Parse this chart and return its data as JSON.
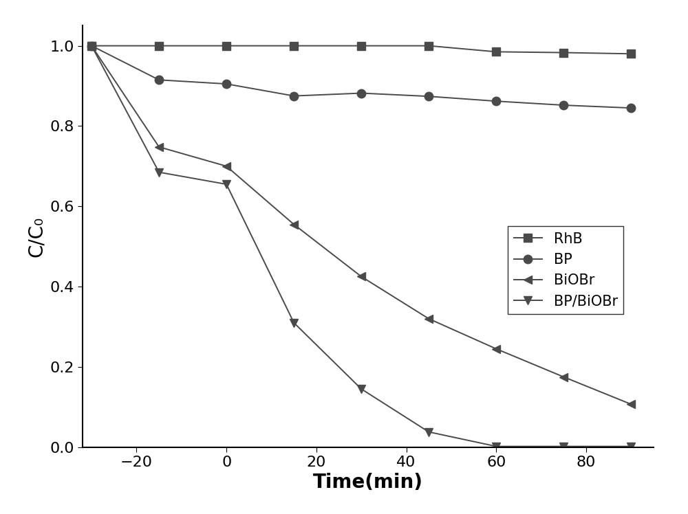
{
  "series": {
    "RhB": {
      "x": [
        -30,
        -15,
        0,
        15,
        30,
        45,
        60,
        75,
        90
      ],
      "y": [
        1.0,
        1.0,
        1.0,
        1.0,
        1.0,
        1.0,
        0.985,
        0.983,
        0.98
      ],
      "color": "#4a4a4a",
      "marker": "s",
      "markersize": 9,
      "linewidth": 1.4,
      "label": "RhB"
    },
    "BP": {
      "x": [
        -30,
        -15,
        0,
        15,
        30,
        45,
        60,
        75,
        90
      ],
      "y": [
        1.0,
        0.915,
        0.905,
        0.875,
        0.882,
        0.874,
        0.862,
        0.852,
        0.845
      ],
      "color": "#4a4a4a",
      "marker": "o",
      "markersize": 9,
      "linewidth": 1.4,
      "label": "BP"
    },
    "BiOBr": {
      "x": [
        -30,
        -15,
        0,
        15,
        30,
        45,
        60,
        75,
        90
      ],
      "y": [
        1.0,
        0.748,
        0.7,
        0.555,
        0.425,
        0.32,
        0.245,
        0.175,
        0.107
      ],
      "color": "#4a4a4a",
      "marker": "<",
      "markersize": 9,
      "linewidth": 1.4,
      "label": "BiOBr"
    },
    "BP_BiOBr": {
      "x": [
        -30,
        -15,
        0,
        15,
        30,
        45,
        60,
        75,
        90
      ],
      "y": [
        1.0,
        0.685,
        0.655,
        0.31,
        0.145,
        0.038,
        0.002,
        0.002,
        0.002
      ],
      "color": "#4a4a4a",
      "marker": "v",
      "markersize": 9,
      "linewidth": 1.4,
      "label": "BP/BiOBr"
    }
  },
  "xlim": [
    -32,
    95
  ],
  "ylim": [
    0.0,
    1.05
  ],
  "xlabel": "Time(min)",
  "ylabel": "C/C₀",
  "xticks": [
    -20,
    0,
    20,
    40,
    60,
    80
  ],
  "yticks": [
    0.0,
    0.2,
    0.4,
    0.6,
    0.8,
    1.0
  ],
  "background_color": "#ffffff",
  "axis_label_fontsize": 20,
  "tick_fontsize": 16,
  "legend_fontsize": 15
}
